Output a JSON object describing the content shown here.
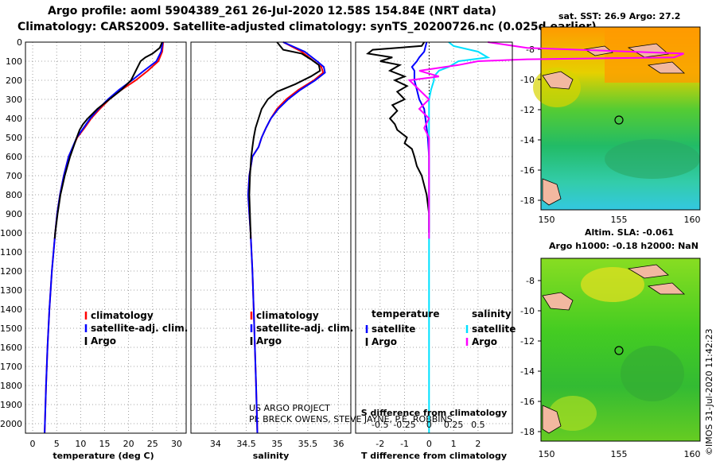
{
  "title_line1": "Argo profile: aoml 5904389_261 26-Jul-2020 12.58S 154.84E (NRT data)",
  "title_line2": "Climatology: CARS2009. Satellite-adjusted climatology: synTS_20200726.nc (0.025d earlier)",
  "colors": {
    "climatology": "#ff0000",
    "satellite": "#0000ff",
    "argo": "#000000",
    "sat_salinity": "#00e0ff",
    "argo_salinity": "#ff00ff"
  },
  "depth_axis": {
    "min": 0,
    "max": 2050,
    "ticks": [
      0,
      100,
      200,
      300,
      400,
      500,
      600,
      700,
      800,
      900,
      1000,
      1100,
      1200,
      1300,
      1400,
      1500,
      1600,
      1700,
      1800,
      1900,
      2000
    ],
    "labels": [
      "0",
      "100",
      "200",
      "300",
      "400",
      "500",
      "600",
      "700",
      "800",
      "900",
      "1000",
      "1100",
      "1200",
      "1300",
      "1400",
      "1500",
      "1600",
      "1700",
      "1800",
      "1900",
      "2000"
    ]
  },
  "chart_data": [
    {
      "type": "line",
      "name": "temperature",
      "xlabel": "temperature (deg C)",
      "ylabel": "depth",
      "xlim": [
        -1.5,
        32
      ],
      "xticks": [
        0,
        5,
        10,
        15,
        20,
        25,
        30
      ],
      "xtick_labels": [
        "0",
        "5",
        "10",
        "15",
        "20",
        "25",
        "30"
      ],
      "legend": [
        "climatology",
        "satellite-adj. clim.",
        "Argo"
      ],
      "series": [
        {
          "name": "climatology",
          "depth": [
            0,
            50,
            100,
            150,
            200,
            250,
            300,
            350,
            400,
            450,
            500,
            600,
            700,
            800,
            900,
            1000,
            1200,
            1400,
            1600,
            1800,
            2050
          ],
          "values": [
            27.2,
            27,
            26.2,
            24,
            21.5,
            18.5,
            16,
            14,
            12.2,
            10.8,
            9.3,
            7.5,
            6.5,
            5.7,
            5.1,
            4.7,
            4.0,
            3.5,
            3.1,
            2.8,
            2.5
          ]
        },
        {
          "name": "satellite-adj. clim.",
          "depth": [
            0,
            50,
            100,
            150,
            200,
            250,
            300,
            350,
            400,
            450,
            500,
            600,
            700,
            800,
            900,
            1000,
            1200,
            1400,
            1600,
            1800,
            2050
          ],
          "values": [
            27.1,
            26.8,
            25.8,
            23.2,
            20.7,
            18,
            15.7,
            13.7,
            12,
            10.6,
            9.2,
            7.5,
            6.5,
            5.7,
            5.1,
            4.7,
            4.0,
            3.5,
            3.1,
            2.8,
            2.5
          ]
        },
        {
          "name": "Argo",
          "depth": [
            0,
            30,
            60,
            80,
            100,
            150,
            200,
            250,
            300,
            350,
            400,
            430,
            460,
            500,
            550,
            600,
            700,
            800,
            900,
            1000,
            1030
          ],
          "values": [
            27,
            26.5,
            25,
            23.5,
            22.5,
            21.5,
            20.5,
            18.5,
            16,
            13.5,
            11.5,
            10.5,
            9.8,
            9.2,
            8.5,
            7.8,
            6.7,
            5.8,
            5.2,
            4.7,
            4.6
          ]
        }
      ]
    },
    {
      "type": "line",
      "name": "salinity",
      "xlabel": "salinity",
      "ylabel": "depth",
      "xlim": [
        33.6,
        36.2
      ],
      "xticks": [
        34,
        34.5,
        35,
        35.5,
        36
      ],
      "xtick_labels": [
        "34",
        "34.5",
        "35",
        "35.5",
        "36"
      ],
      "legend": [
        "climatology",
        "satellite-adj. clim.",
        "Argo"
      ],
      "series": [
        {
          "name": "climatology",
          "depth": [
            0,
            50,
            100,
            130,
            160,
            200,
            250,
            300,
            350,
            400,
            450,
            500,
            550,
            600,
            700,
            800,
            900,
            1000,
            1200,
            1400,
            1600,
            1800,
            2050
          ],
          "values": [
            35.1,
            35.4,
            35.6,
            35.72,
            35.75,
            35.6,
            35.35,
            35.15,
            35.0,
            34.9,
            34.82,
            34.75,
            34.7,
            34.6,
            34.55,
            34.53,
            34.55,
            34.57,
            34.6,
            34.62,
            34.64,
            34.66,
            34.68
          ]
        },
        {
          "name": "satellite-adj. clim.",
          "depth": [
            0,
            50,
            100,
            130,
            160,
            200,
            250,
            300,
            350,
            400,
            450,
            500,
            550,
            600,
            700,
            800,
            900,
            1000,
            1200,
            1400,
            1600,
            1800,
            2050
          ],
          "values": [
            35.1,
            35.45,
            35.65,
            35.76,
            35.78,
            35.62,
            35.38,
            35.18,
            35.02,
            34.9,
            34.82,
            34.75,
            34.7,
            34.6,
            34.55,
            34.53,
            34.55,
            34.57,
            34.6,
            34.62,
            34.64,
            34.66,
            34.68
          ]
        },
        {
          "name": "Argo",
          "depth": [
            0,
            40,
            60,
            90,
            120,
            150,
            180,
            220,
            260,
            300,
            350,
            400,
            450,
            500,
            550,
            600,
            700,
            800,
            900,
            1000,
            1030
          ],
          "values": [
            35.0,
            35.1,
            35.4,
            35.55,
            35.68,
            35.7,
            35.55,
            35.3,
            35.0,
            34.85,
            34.75,
            34.7,
            34.65,
            34.62,
            34.6,
            34.58,
            34.56,
            34.55,
            34.56,
            34.57,
            34.57
          ]
        }
      ]
    },
    {
      "type": "line",
      "name": "difference",
      "xlabel": "T difference from climatology",
      "xlabel_top": "S difference from climatology",
      "xlim": [
        -3.0,
        3.4
      ],
      "xticks": [
        -2,
        -1,
        0,
        1,
        2
      ],
      "xtick_labels": [
        "-2",
        "-1",
        "0",
        "1",
        "2"
      ],
      "xticks_top": [
        -0.5,
        -0.25,
        0,
        0.25,
        0.5
      ],
      "xtick_labels_top": [
        "-0.5",
        "-0.25",
        "0",
        "0.25",
        "0.5"
      ],
      "legend_headers": [
        "temperature",
        "salinity"
      ],
      "legend": [
        "satellite",
        "Argo",
        "satellite",
        "Argo"
      ],
      "series": [
        {
          "name": "temperature satellite",
          "depth": [
            0,
            50,
            80,
            100,
            130,
            150,
            200,
            250,
            300,
            350,
            400,
            450,
            500,
            600,
            700,
            800,
            900,
            1000
          ],
          "values": [
            -0.1,
            -0.2,
            -0.4,
            -0.5,
            -0.7,
            -0.6,
            -0.6,
            -0.5,
            -0.4,
            -0.2,
            -0.15,
            -0.1,
            -0.05,
            0,
            0,
            0,
            0,
            0
          ]
        },
        {
          "name": "temperature Argo",
          "depth": [
            0,
            20,
            40,
            60,
            80,
            100,
            120,
            150,
            180,
            200,
            230,
            260,
            300,
            330,
            360,
            400,
            430,
            460,
            500,
            530,
            560,
            600,
            650,
            700,
            750,
            800,
            900,
            1000
          ],
          "values": [
            -0.2,
            -0.3,
            -2.3,
            -2.5,
            -1.5,
            -2.0,
            -1.2,
            -1.6,
            -1.0,
            -1.4,
            -0.9,
            -1.3,
            -1.0,
            -1.5,
            -1.3,
            -1.6,
            -1.4,
            -1.3,
            -0.9,
            -1.0,
            -0.7,
            -0.6,
            -0.5,
            -0.3,
            -0.2,
            -0.1,
            0,
            0
          ]
        },
        {
          "name": "salinity satellite",
          "depth": [
            0,
            20,
            50,
            80,
            100,
            130,
            150,
            180,
            200,
            250,
            300,
            400,
            500,
            700,
            1000,
            1400,
            1800,
            2050
          ],
          "values": [
            0.2,
            0.25,
            0.5,
            0.6,
            0.3,
            0.2,
            0.1,
            0.05,
            0.05,
            0.02,
            0,
            0,
            0,
            0,
            0,
            0,
            0,
            0
          ]
        },
        {
          "name": "salinity Argo",
          "depth": [
            0,
            30,
            60,
            80,
            90,
            100,
            120,
            150,
            180,
            200,
            250,
            300,
            350,
            400,
            450,
            500,
            600,
            700,
            800,
            900,
            1000,
            1030
          ],
          "values": [
            0.6,
            1.0,
            2.6,
            2.5,
            1.0,
            0.5,
            0.3,
            -0.1,
            0.1,
            -0.2,
            -0.1,
            0,
            -0.1,
            0,
            -0.05,
            0,
            0,
            0,
            0,
            0,
            0,
            0
          ]
        }
      ]
    }
  ],
  "credits": {
    "line1": "US ARGO PROJECT",
    "line2": "PI: BRECK OWENS, STEVE JAYNE, P.E. ROBBINS"
  },
  "map1": {
    "title": "sat. SST: 26.9 Argo: 27.2",
    "yticks": [
      "-8",
      "-10",
      "-12",
      "-14",
      "-16",
      "-18"
    ],
    "xticks": [
      "150",
      "155",
      "160"
    ]
  },
  "map2": {
    "title_line1": "Altim. SLA: -0.061",
    "title_line2": "Argo h1000: -0.18 h2000: NaN",
    "yticks": [
      "-8",
      "-10",
      "-12",
      "-14",
      "-16",
      "-18"
    ],
    "xticks": [
      "150",
      "155",
      "160"
    ]
  },
  "stamp": "©IMOS 31-Jul-2020 11:42:23"
}
